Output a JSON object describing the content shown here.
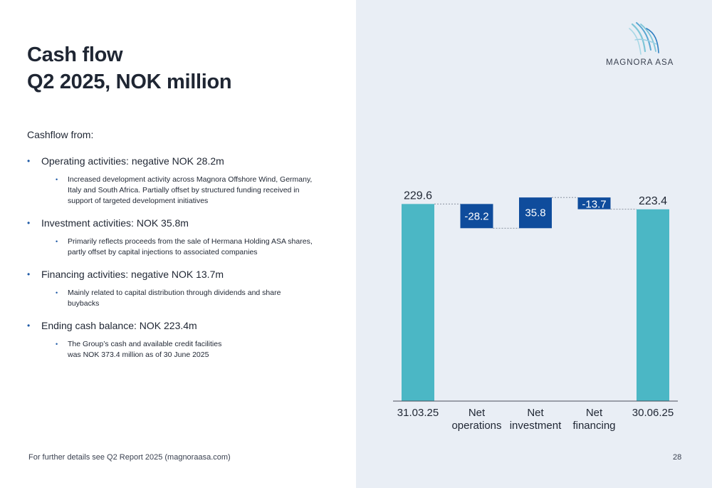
{
  "slide": {
    "title_line1": "Cash flow",
    "title_line2": "Q2 2025, NOK million",
    "intro": "Cashflow from:",
    "bullets": [
      {
        "head": "Operating activities: negative NOK 28.2m",
        "sub": "Increased development activity across Magnora Offshore Wind, Germany,\nItaly and South Africa. Partially offset by structured funding received in\nsupport of targeted development initiatives"
      },
      {
        "head": "Investment activities: NOK 35.8m",
        "sub": "Primarily reflects proceeds from the sale of Hermana Holding ASA shares,\npartly offset by capital injections to associated companies"
      },
      {
        "head": "Financing activities: negative NOK 13.7m",
        "sub": "Mainly related to capital distribution through dividends and share\nbuybacks"
      },
      {
        "head": "Ending cash balance: NOK 223.4m",
        "sub": "The Group’s cash and available credit facilities\nwas NOK 373.4 million as of 30 June 2025"
      }
    ],
    "footer": "For further details see Q2 Report 2025 (magnoraasa.com)",
    "page_number": "28",
    "logo_text": "MAGNORA ASA"
  },
  "colors": {
    "total_bar": "#4bb7c5",
    "delta_bar": "#0f4c9c",
    "right_panel": "#e9eef5",
    "bullet": "#1f5aa6"
  },
  "chart_data": {
    "type": "bar",
    "subtype": "waterfall",
    "categories": [
      "31.03.25",
      "Net operations",
      "Net investment",
      "Net financing",
      "30.06.25"
    ],
    "category_lines": [
      [
        "31.03.25"
      ],
      [
        "Net",
        "operations"
      ],
      [
        "Net",
        "investment"
      ],
      [
        "Net",
        "financing"
      ],
      [
        "30.06.25"
      ]
    ],
    "values": [
      229.6,
      -28.2,
      35.8,
      -13.7,
      223.4
    ],
    "value_labels": [
      "229.6",
      "-28.2",
      "35.8",
      "-13.7",
      "223.4"
    ],
    "bar_kinds": [
      "total",
      "delta",
      "delta",
      "delta",
      "total"
    ],
    "ylim": [
      0,
      240
    ],
    "grid": false,
    "connectors": true
  }
}
